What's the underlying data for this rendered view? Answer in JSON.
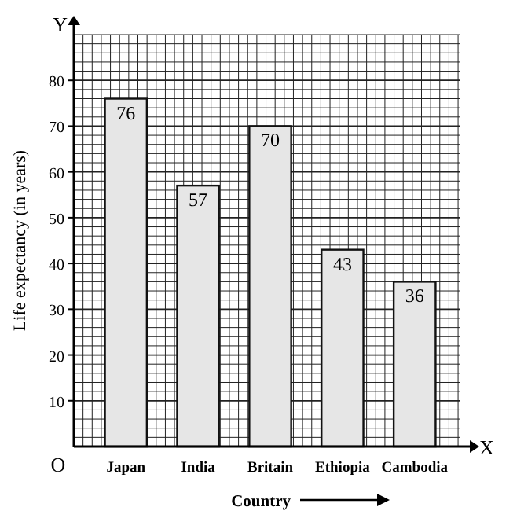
{
  "chart_data": {
    "type": "bar",
    "xlabel": "Country",
    "ylabel": "Life expectancy (in years)",
    "categories": [
      "Japan",
      "India",
      "Britain",
      "Ethiopia",
      "Cambodia"
    ],
    "values": [
      76,
      57,
      70,
      43,
      36
    ],
    "color": "#e6e6e6",
    "data_labels": true,
    "ylim": [
      0,
      90
    ],
    "yticks": [
      10,
      20,
      30,
      40,
      50,
      60,
      70,
      80
    ],
    "grid": true,
    "annotations": [
      "O",
      "X",
      "Y"
    ]
  }
}
